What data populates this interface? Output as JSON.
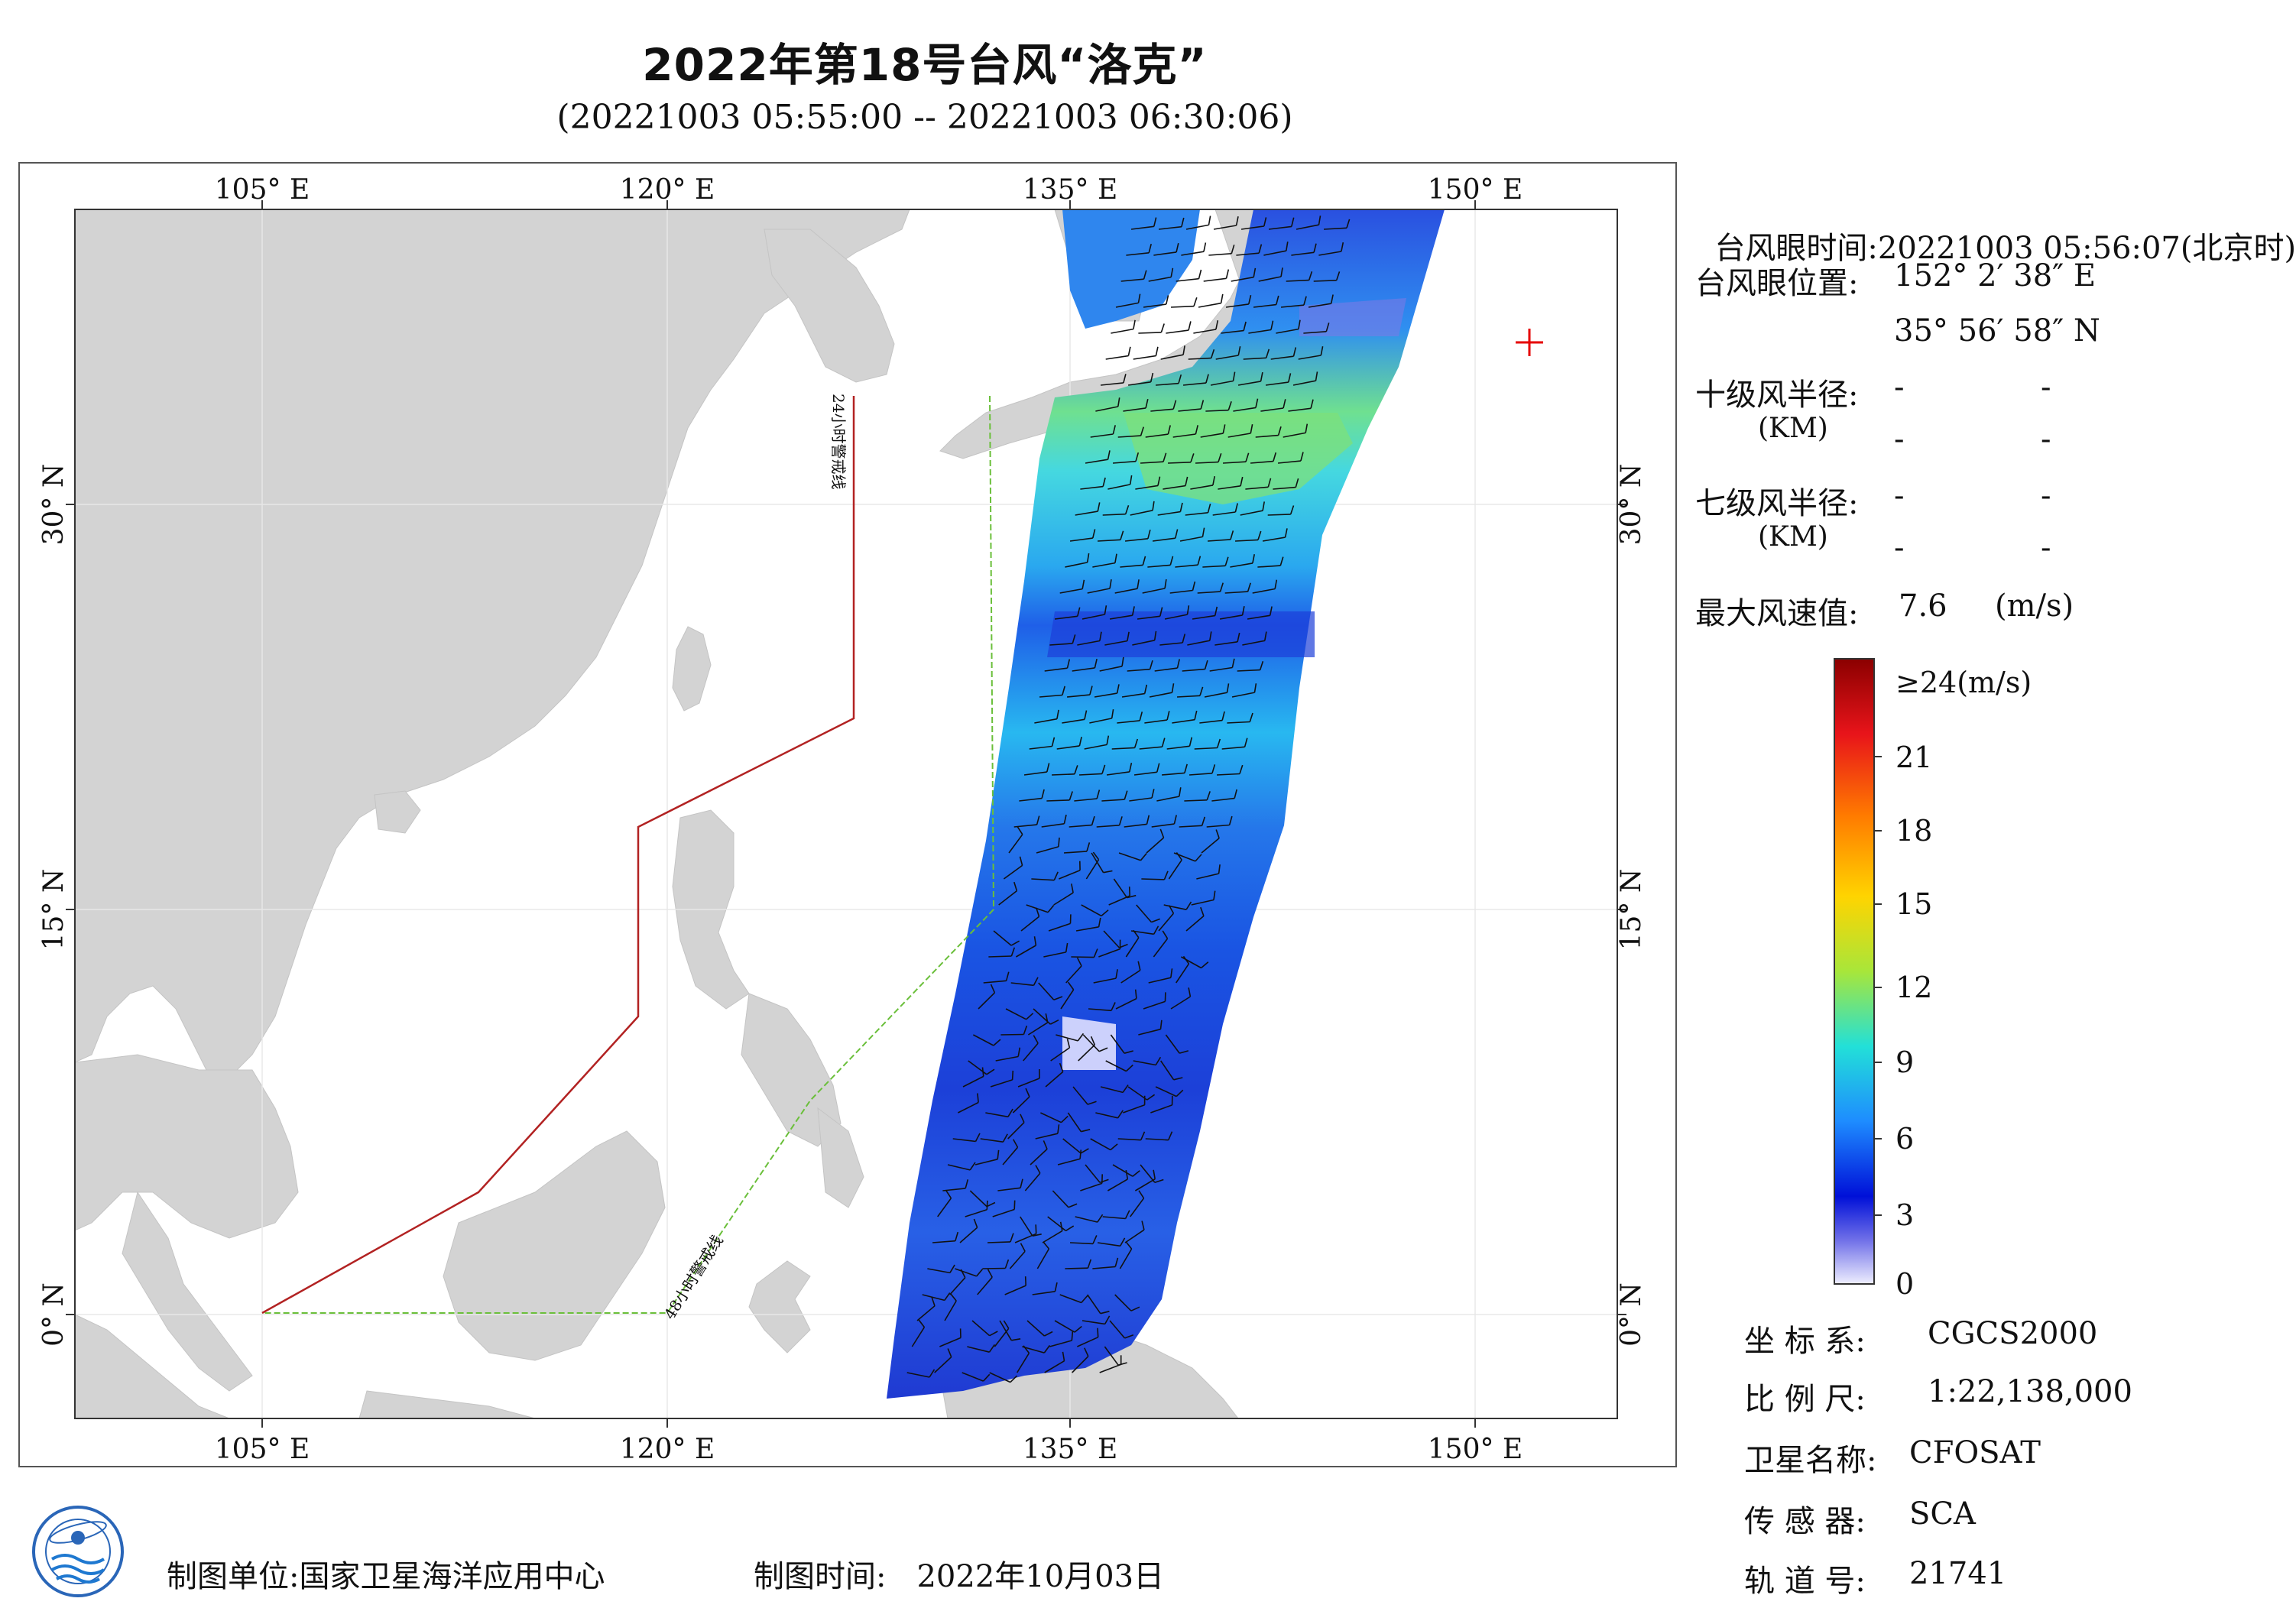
{
  "header": {
    "title": "2022年第18号台风“洛克”",
    "time_range": "(20221003 05:55:00 -- 20221003 06:30:06)"
  },
  "map": {
    "lon_labels": [
      "105° E",
      "120° E",
      "135° E",
      "150° E"
    ],
    "lat_labels": [
      "30° N",
      "15° N",
      "0° N"
    ],
    "warning_24h_label": "24小时警戒线",
    "warning_48h_label": "48小时警戒线",
    "warning_24h_color": "#b22222",
    "warning_48h_color": "#6abf3a",
    "land_color": "#d4d4d4",
    "eye_marker_color": "#e60000"
  },
  "info": {
    "eye_time_label": "台风眼时间:",
    "eye_time_value": "20221003 05:56:07(北京时)",
    "eye_pos_label": "台风眼位置:",
    "eye_lon": "152° 2′ 38″ E",
    "eye_lat": "35° 56′ 58″ N",
    "r10_label": "十级风半径:",
    "r7_label": "七级风半径:",
    "km_label": "(KM)",
    "dash": "-",
    "max_wind_label": "最大风速值:",
    "max_wind_value": "7.6",
    "max_wind_unit": "(m/s)"
  },
  "colorbar": {
    "top_label": "≥24(m/s)",
    "ticks": [
      "21",
      "18",
      "15",
      "12",
      "9",
      "6",
      "3",
      "0"
    ],
    "colors": [
      "#8b0000",
      "#e41a1c",
      "#ff7f00",
      "#ffd700",
      "#b5e61d",
      "#20e0d0",
      "#1e90ff",
      "#0000d0",
      "#e8e8ff"
    ]
  },
  "meta": {
    "crs_label": "坐 标 系:",
    "crs_value": "CGCS2000",
    "scale_label": "比 例 尺:",
    "scale_value": "1:22,138,000",
    "satellite_label": "卫星名称:",
    "satellite_value": "CFOSAT",
    "sensor_label": "传 感 器:",
    "sensor_value": "SCA",
    "orbit_label": "轨 道 号:",
    "orbit_value": "21741"
  },
  "footer": {
    "org_label": "制图单位:",
    "org_value": "国家卫星海洋应用中心",
    "date_label": "制图时间:",
    "date_value": "2022年10月03日"
  }
}
